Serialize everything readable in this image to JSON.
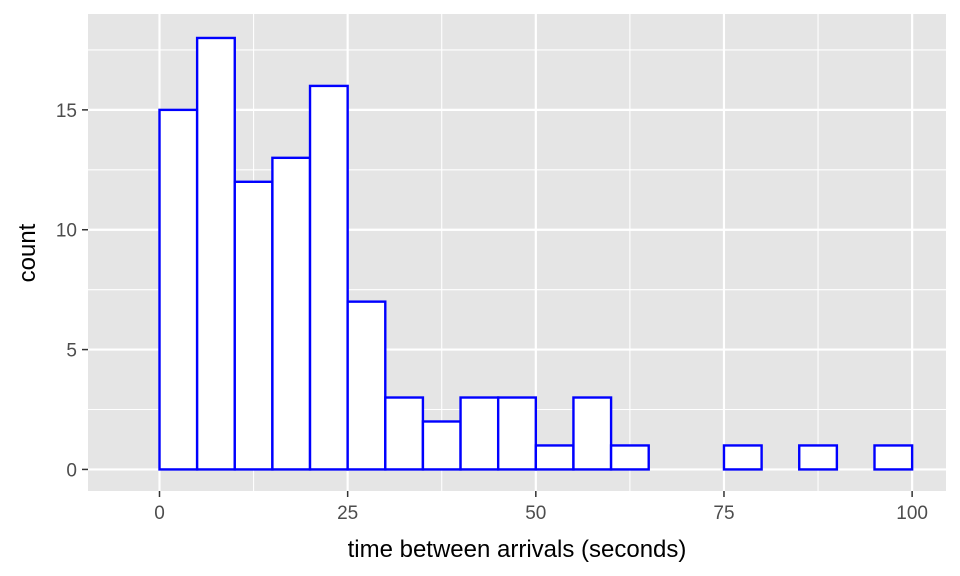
{
  "chart_data": {
    "type": "histogram",
    "xlabel": "time between arrivals (seconds)",
    "ylabel": "count",
    "bin_width": 5,
    "bins": [
      {
        "start": 0,
        "end": 5,
        "count": 15
      },
      {
        "start": 5,
        "end": 10,
        "count": 18
      },
      {
        "start": 10,
        "end": 15,
        "count": 12
      },
      {
        "start": 15,
        "end": 20,
        "count": 13
      },
      {
        "start": 20,
        "end": 25,
        "count": 16
      },
      {
        "start": 25,
        "end": 30,
        "count": 7
      },
      {
        "start": 30,
        "end": 35,
        "count": 3
      },
      {
        "start": 35,
        "end": 40,
        "count": 2
      },
      {
        "start": 40,
        "end": 45,
        "count": 3
      },
      {
        "start": 45,
        "end": 50,
        "count": 3
      },
      {
        "start": 50,
        "end": 55,
        "count": 1
      },
      {
        "start": 55,
        "end": 60,
        "count": 3
      },
      {
        "start": 60,
        "end": 65,
        "count": 1
      },
      {
        "start": 65,
        "end": 70,
        "count": 0
      },
      {
        "start": 70,
        "end": 75,
        "count": 0
      },
      {
        "start": 75,
        "end": 80,
        "count": 1
      },
      {
        "start": 80,
        "end": 85,
        "count": 0
      },
      {
        "start": 85,
        "end": 90,
        "count": 1
      },
      {
        "start": 90,
        "end": 95,
        "count": 0
      },
      {
        "start": 95,
        "end": 100,
        "count": 1
      }
    ],
    "xlim": [
      -9.5,
      104.5
    ],
    "ylim": [
      -0.9,
      19.0
    ],
    "x_ticks": [
      0,
      25,
      50,
      75,
      100
    ],
    "x_tick_labels": [
      "0",
      "25",
      "50",
      "75",
      "100"
    ],
    "y_ticks": [
      0,
      5,
      10,
      15
    ],
    "y_tick_labels": [
      "0",
      "5",
      "10",
      "15"
    ],
    "grid": true,
    "colors": {
      "panel_background": "#e5e5e5",
      "grid": "#ffffff",
      "bar_fill": "#ffffff",
      "bar_outline": "#0000ff",
      "tick_text": "#4d4d4d",
      "tick_mark": "#333333",
      "title_text": "#000000"
    }
  }
}
